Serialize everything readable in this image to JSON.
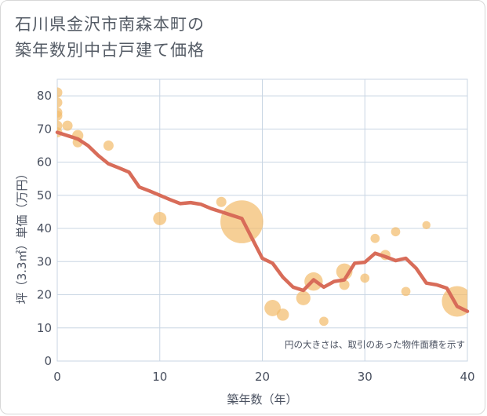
{
  "header": {
    "title_line1": "石川県金沢市南森本町の",
    "title_line2": "築年数別中古戸建て価格"
  },
  "colors": {
    "bubble": "#f3bd6e",
    "line": "#d86c59",
    "grid": "#c8d5e3",
    "text": "#4a5160"
  },
  "chart_data": {
    "type": "scatter",
    "title": "石川県金沢市南森本町の築年数別中古戸建て価格",
    "xlabel": "築年数（年）",
    "ylabel": "坪（3.3㎡）単価（万円）",
    "xlim": [
      0,
      40
    ],
    "ylim": [
      0,
      85
    ],
    "xticks": [
      0,
      10,
      20,
      30,
      40
    ],
    "yticks": [
      0,
      10,
      20,
      30,
      40,
      50,
      60,
      70,
      80
    ],
    "grid": true,
    "annotation": "円の大きさは、取引のあった物件面積を示す",
    "bubbles": [
      {
        "x": 0,
        "y": 81,
        "size": 1.0
      },
      {
        "x": 0,
        "y": 78,
        "size": 1.0
      },
      {
        "x": 0,
        "y": 75,
        "size": 1.0
      },
      {
        "x": 0,
        "y": 74,
        "size": 1.0
      },
      {
        "x": 0,
        "y": 71,
        "size": 1.0
      },
      {
        "x": 0,
        "y": 69,
        "size": 1.0
      },
      {
        "x": 1,
        "y": 71,
        "size": 1.0
      },
      {
        "x": 2,
        "y": 68,
        "size": 1.1
      },
      {
        "x": 2,
        "y": 66,
        "size": 1.0
      },
      {
        "x": 5,
        "y": 65,
        "size": 1.0
      },
      {
        "x": 10,
        "y": 43,
        "size": 1.3
      },
      {
        "x": 16,
        "y": 48,
        "size": 1.0
      },
      {
        "x": 18,
        "y": 42,
        "size": 4.2
      },
      {
        "x": 21,
        "y": 16,
        "size": 1.6
      },
      {
        "x": 22,
        "y": 14,
        "size": 1.2
      },
      {
        "x": 24,
        "y": 19,
        "size": 1.4
      },
      {
        "x": 25,
        "y": 24,
        "size": 1.8
      },
      {
        "x": 26,
        "y": 12,
        "size": 0.9
      },
      {
        "x": 28,
        "y": 27,
        "size": 1.6
      },
      {
        "x": 28,
        "y": 23,
        "size": 1.0
      },
      {
        "x": 30,
        "y": 25,
        "size": 0.9
      },
      {
        "x": 31,
        "y": 37,
        "size": 0.9
      },
      {
        "x": 32,
        "y": 32,
        "size": 1.0
      },
      {
        "x": 33,
        "y": 39,
        "size": 0.9
      },
      {
        "x": 34,
        "y": 21,
        "size": 0.9
      },
      {
        "x": 36,
        "y": 41,
        "size": 0.8
      },
      {
        "x": 39,
        "y": 18,
        "size": 3.0
      }
    ],
    "trend_line": {
      "x": [
        0,
        1,
        2,
        3,
        4,
        5,
        6,
        7,
        8,
        9,
        10,
        11,
        12,
        13,
        14,
        15,
        16,
        17,
        18,
        19,
        20,
        21,
        22,
        23,
        24,
        25,
        26,
        27,
        28,
        29,
        30,
        31,
        32,
        33,
        34,
        35,
        36,
        37,
        38,
        39,
        40
      ],
      "y": [
        69,
        68,
        67,
        65,
        62,
        59.5,
        58.3,
        57,
        52.5,
        51.3,
        50,
        48.7,
        47.5,
        47.8,
        47.3,
        46,
        45,
        44,
        43,
        37,
        31,
        29.5,
        25.3,
        22.3,
        21.3,
        24.5,
        22.3,
        24,
        24.5,
        29.5,
        29.8,
        32.5,
        31.5,
        30.3,
        31,
        28,
        23.5,
        23,
        22,
        16.5,
        15
      ]
    }
  }
}
